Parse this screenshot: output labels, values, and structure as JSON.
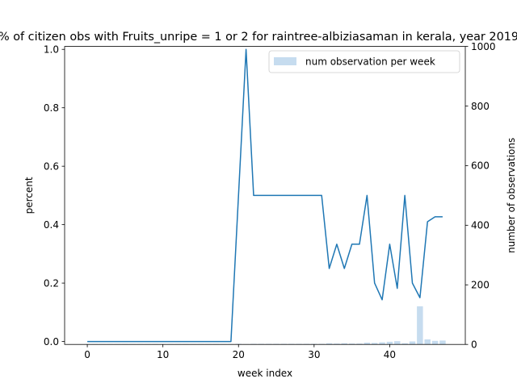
{
  "chart_data": {
    "type": "line",
    "title": "% of citizen obs with Fruits_unripe = 1 or 2 for raintree-albiziasaman in kerala, year 2019",
    "xlabel": "week index",
    "ylabel": "percent",
    "y2label": "number of observations",
    "xlim": [
      -3,
      50
    ],
    "ylim": [
      -0.01,
      1.01
    ],
    "y2lim": [
      0,
      1000
    ],
    "xticks": [
      0,
      10,
      20,
      30,
      40
    ],
    "yticks": [
      0.0,
      0.2,
      0.4,
      0.6,
      0.8,
      1.0
    ],
    "y2ticks": [
      0,
      200,
      400,
      600,
      800,
      1000
    ],
    "grid": false,
    "legend": {
      "position": "top-right",
      "entries": [
        "num observation per week"
      ]
    },
    "line_color": "#1f77b4",
    "bar_color": "#c6dcef",
    "series": [
      {
        "kind": "line",
        "axis": "left",
        "x": [
          0,
          1,
          2,
          3,
          4,
          5,
          6,
          7,
          8,
          9,
          10,
          11,
          12,
          13,
          14,
          15,
          16,
          17,
          18,
          19,
          20,
          21,
          22,
          23,
          24,
          25,
          26,
          27,
          28,
          29,
          30,
          31,
          32,
          33,
          34,
          35,
          36,
          37,
          38,
          39,
          40,
          41,
          42,
          43,
          44,
          45,
          46,
          47
        ],
        "values": [
          0,
          0,
          0,
          0,
          0,
          0,
          0,
          0,
          0,
          0,
          0,
          0,
          0,
          0,
          0,
          0,
          0,
          0,
          0,
          0,
          0.5,
          1.0,
          0.5,
          0.5,
          0.5,
          0.5,
          0.5,
          0.5,
          0.5,
          0.5,
          0.5,
          0.5,
          0.25,
          0.333,
          0.25,
          0.333,
          0.333,
          0.5,
          0.2,
          0.143,
          0.333,
          0.182,
          0.5,
          0.2,
          0.15,
          0.41,
          0.427,
          0.427
        ]
      },
      {
        "name": "num observation per week",
        "kind": "bar",
        "axis": "right",
        "x": [
          0,
          1,
          2,
          3,
          4,
          5,
          6,
          7,
          8,
          9,
          10,
          11,
          12,
          13,
          14,
          15,
          16,
          17,
          18,
          19,
          20,
          21,
          22,
          23,
          24,
          25,
          26,
          27,
          28,
          29,
          30,
          31,
          32,
          33,
          34,
          35,
          36,
          37,
          38,
          39,
          40,
          41,
          42,
          43,
          44,
          45,
          46,
          47
        ],
        "values": [
          1,
          1,
          1,
          1,
          1,
          1,
          1,
          1,
          1,
          1,
          1,
          1,
          1,
          1,
          1,
          1,
          1,
          1,
          1,
          1,
          2,
          1,
          2,
          2,
          2,
          2,
          2,
          2,
          2,
          2,
          2,
          2,
          4,
          3,
          4,
          3,
          3,
          6,
          5,
          7,
          9,
          11,
          4,
          10,
          128,
          17,
          12,
          13
        ]
      }
    ]
  }
}
